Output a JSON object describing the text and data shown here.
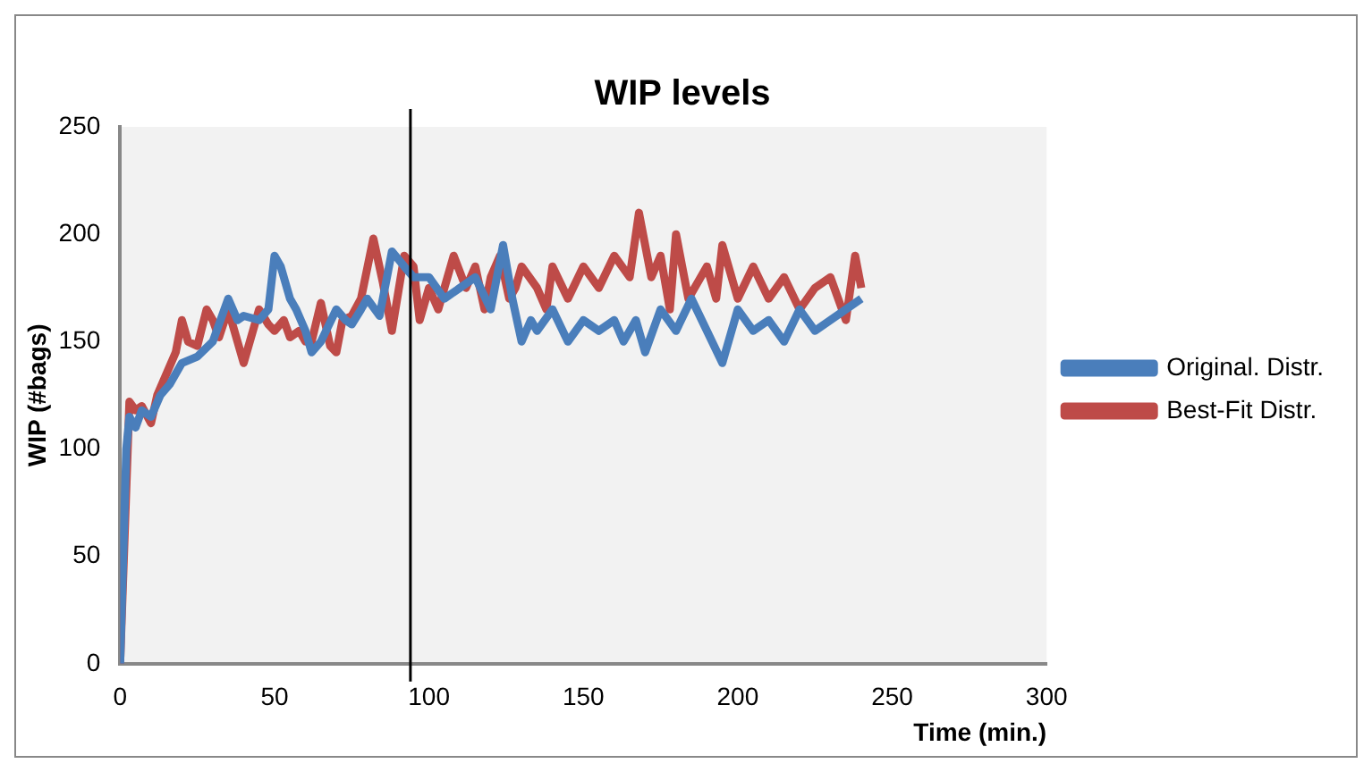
{
  "chart_data": {
    "type": "line",
    "title": "WIP levels",
    "xlabel": "Time (min.)",
    "ylabel": "WIP (#bags)",
    "xlim": [
      0,
      300
    ],
    "xticks": [
      0,
      50,
      100,
      150,
      200,
      250,
      300
    ],
    "ylim": [
      0,
      250
    ],
    "yticks": [
      0,
      50,
      100,
      150,
      200,
      250
    ],
    "grid": false,
    "legend": "right",
    "marker": "none",
    "line_style": "solid",
    "ref_lines": [
      {
        "axis": "x",
        "value": 94,
        "color": "#000000"
      }
    ],
    "series": [
      {
        "name": "Original. Distr.",
        "color": "#4a7ebb",
        "x": [
          0,
          2,
          3,
          5,
          7,
          10,
          13,
          16,
          20,
          25,
          30,
          35,
          38,
          40,
          45,
          48,
          50,
          52,
          55,
          57,
          60,
          62,
          65,
          70,
          73,
          75,
          78,
          80,
          84,
          88,
          92,
          95,
          100,
          105,
          110,
          115,
          120,
          124,
          127,
          130,
          133,
          135,
          140,
          145,
          150,
          155,
          160,
          163,
          167,
          170,
          175,
          180,
          185,
          190,
          195,
          200,
          205,
          210,
          215,
          220,
          225,
          230,
          235,
          240
        ],
        "values": [
          0,
          100,
          115,
          110,
          118,
          115,
          125,
          130,
          140,
          143,
          150,
          170,
          160,
          162,
          160,
          165,
          190,
          185,
          170,
          165,
          155,
          145,
          150,
          165,
          160,
          158,
          165,
          170,
          162,
          192,
          185,
          180,
          180,
          170,
          175,
          180,
          165,
          195,
          170,
          150,
          160,
          155,
          165,
          150,
          160,
          155,
          160,
          150,
          160,
          145,
          165,
          155,
          170,
          155,
          140,
          165,
          155,
          160,
          150,
          165,
          155,
          160,
          165,
          170
        ]
      },
      {
        "name": "Best-Fit Distr.",
        "color": "#be4b48",
        "x": [
          0,
          3,
          5,
          7,
          10,
          12,
          15,
          18,
          20,
          22,
          25,
          28,
          30,
          32,
          35,
          38,
          40,
          42,
          45,
          48,
          50,
          53,
          55,
          58,
          60,
          62,
          65,
          68,
          70,
          72,
          75,
          78,
          82,
          85,
          88,
          92,
          95,
          97,
          100,
          103,
          105,
          108,
          112,
          115,
          118,
          120,
          123,
          126,
          128,
          130,
          135,
          138,
          140,
          145,
          150,
          155,
          160,
          165,
          168,
          172,
          175,
          178,
          180,
          184,
          188,
          190,
          193,
          195,
          200,
          205,
          210,
          215,
          220,
          225,
          230,
          235,
          238,
          240
        ],
        "values": [
          0,
          122,
          118,
          120,
          112,
          125,
          135,
          145,
          160,
          150,
          148,
          165,
          160,
          152,
          165,
          150,
          140,
          150,
          165,
          158,
          155,
          160,
          152,
          155,
          150,
          150,
          168,
          148,
          145,
          160,
          162,
          170,
          198,
          178,
          155,
          190,
          185,
          160,
          175,
          165,
          175,
          190,
          175,
          185,
          165,
          180,
          190,
          170,
          175,
          185,
          175,
          165,
          185,
          170,
          185,
          175,
          190,
          180,
          210,
          180,
          190,
          165,
          200,
          170,
          180,
          185,
          170,
          195,
          170,
          185,
          170,
          180,
          165,
          175,
          180,
          160,
          190,
          175
        ]
      }
    ]
  }
}
